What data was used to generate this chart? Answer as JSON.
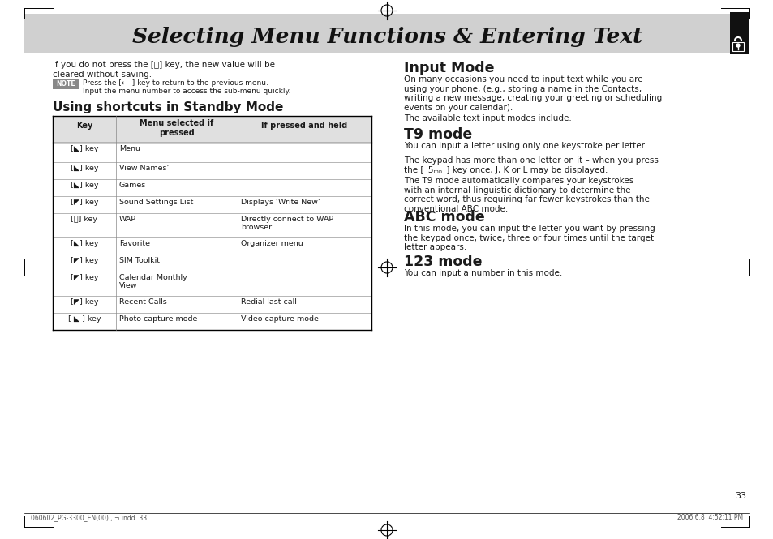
{
  "title": "Selecting Menu Functions & Entering Text",
  "bg_color": "#ffffff",
  "header_bg": "#d0d0d0",
  "body_color": "#1a1a1a",
  "page_number": "33",
  "footer_left": "060602_PG-3300_EN(00) , ¬.indd  33",
  "footer_right": "2006.6.8  4:52:11 PM",
  "table_key_labels": [
    "[◣] key",
    "[◣] key",
    "[◣] key",
    "[◤] key",
    "[⒪] key",
    "[◣] key",
    "[◤] key",
    "[◤] key",
    "[◤] key",
    "[ ◣ ] key"
  ],
  "table_menu_labels": [
    "Menu",
    "View Names’",
    "Games",
    "Sound Settings List",
    "WAP",
    "Favorite",
    "SIM Toolkit",
    "Calendar Monthly\nView",
    "Recent Calls",
    "Photo capture mode"
  ],
  "table_held_labels": [
    "",
    "",
    "",
    "Displays ‘Write New’",
    "Directly connect to WAP\nbrowser",
    "Organizer menu",
    "",
    "",
    "Redial last call",
    "Video capture mode"
  ],
  "table_row_heights": [
    24,
    21,
    21,
    21,
    30,
    21,
    21,
    30,
    21,
    21
  ],
  "table_headers": [
    "Key",
    "Menu selected if\npressed",
    "If pressed and held"
  ],
  "intro_text": "If you do not press the [⒪] key, the new value will be\ncleared without saving.",
  "note_text": "Press the [⟵] key to return to the previous menu.\nInput the menu number to access the sub-menu quickly.",
  "input_mode_title": "Input Mode",
  "input_mode_text": "On many occasions you need to input text while you are\nusing your phone, (e.g., storing a name in the Contacts,\nwriting a new message, creating your greeting or scheduling\nevents on your calendar).",
  "input_mode_text2": "The available text input modes include.",
  "t9_title": "T9 mode",
  "t9_text1": "You can input a letter using only one keystroke per letter.",
  "t9_text2": "The keypad has more than one letter on it – when you press\nthe [  5ₘₙ  ] key once, J, K or L may be displayed.",
  "t9_text3": "The T9 mode automatically compares your keystrokes\nwith an internal linguistic dictionary to determine the\ncorrect word, thus requiring far fewer keystrokes than the\nconventional ABC mode.",
  "abc_title": "ABC mode",
  "abc_text": "In this mode, you can input the letter you want by pressing\nthe keypad once, twice, three or four times until the target\nletter appears.",
  "mode123_title": "123 mode",
  "mode123_text": "You can input a number in this mode.",
  "section1_title": "Using shortcuts in Standby Mode"
}
